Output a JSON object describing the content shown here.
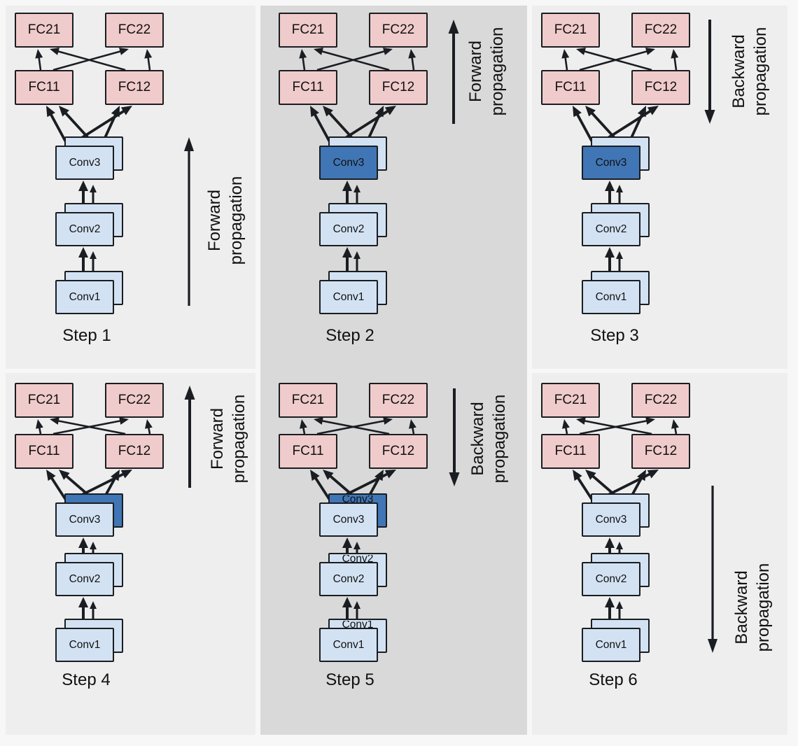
{
  "colors": {
    "page_background": "#f7f7f7",
    "panel_light": "#eeeeee",
    "panel_dark": "#d9d9d9",
    "fc_fill": "#f0cbcb",
    "conv_fill": "#d3e2f3",
    "conv_highlight_fill": "#4076b6",
    "outline": "#1a1d21",
    "text": "#111111"
  },
  "panels": [
    {
      "step_label": "Step 1",
      "fc_row_top": [
        "FC21",
        "FC22"
      ],
      "fc_row_bottom": [
        "FC11",
        "FC12"
      ],
      "conv_stack": [
        "Conv3",
        "Conv2",
        "Conv1"
      ],
      "propagation": {
        "label": "Forward propagation",
        "direction": "up",
        "arrow_length": "long"
      },
      "highlighted_conv": "none",
      "background_shade": "light",
      "occluded_back_labels_visible": false
    },
    {
      "step_label": "Step 2",
      "fc_row_top": [
        "FC21",
        "FC22"
      ],
      "fc_row_bottom": [
        "FC11",
        "FC12"
      ],
      "conv_stack": [
        "Conv3",
        "Conv2",
        "Conv1"
      ],
      "propagation": {
        "label": "Forward propagation",
        "direction": "up",
        "arrow_length": "short"
      },
      "highlighted_conv": "Conv3 front copy",
      "background_shade": "dark",
      "occluded_back_labels_visible": false
    },
    {
      "step_label": "Step 3",
      "fc_row_top": [
        "FC21",
        "FC22"
      ],
      "fc_row_bottom": [
        "FC11",
        "FC12"
      ],
      "conv_stack": [
        "Conv3",
        "Conv2",
        "Conv1"
      ],
      "propagation": {
        "label": "Backward propagation",
        "direction": "down",
        "arrow_length": "short"
      },
      "highlighted_conv": "Conv3 front copy",
      "background_shade": "light",
      "occluded_back_labels_visible": false
    },
    {
      "step_label": "Step 4",
      "fc_row_top": [
        "FC21",
        "FC22"
      ],
      "fc_row_bottom": [
        "FC11",
        "FC12"
      ],
      "conv_stack": [
        "Conv3",
        "Conv2",
        "Conv1"
      ],
      "propagation": {
        "label": "Forward propagation",
        "direction": "up",
        "arrow_length": "short"
      },
      "highlighted_conv": "Conv3 back copy",
      "background_shade": "light",
      "occluded_back_labels_visible": false
    },
    {
      "step_label": "Step 5",
      "fc_row_top": [
        "FC21",
        "FC22"
      ],
      "fc_row_bottom": [
        "FC11",
        "FC12"
      ],
      "conv_stack": [
        "Conv3",
        "Conv2",
        "Conv1"
      ],
      "propagation": {
        "label": "Backward propagation",
        "direction": "down",
        "arrow_length": "short"
      },
      "highlighted_conv": "Conv3 back copy",
      "background_shade": "dark",
      "occluded_back_labels_visible": true
    },
    {
      "step_label": "Step 6",
      "fc_row_top": [
        "FC21",
        "FC22"
      ],
      "fc_row_bottom": [
        "FC11",
        "FC12"
      ],
      "conv_stack": [
        "Conv3",
        "Conv2",
        "Conv1"
      ],
      "propagation": {
        "label": "Backward propagation",
        "direction": "down",
        "arrow_length": "long"
      },
      "highlighted_conv": "none",
      "background_shade": "light",
      "occluded_back_labels_visible": false
    }
  ]
}
